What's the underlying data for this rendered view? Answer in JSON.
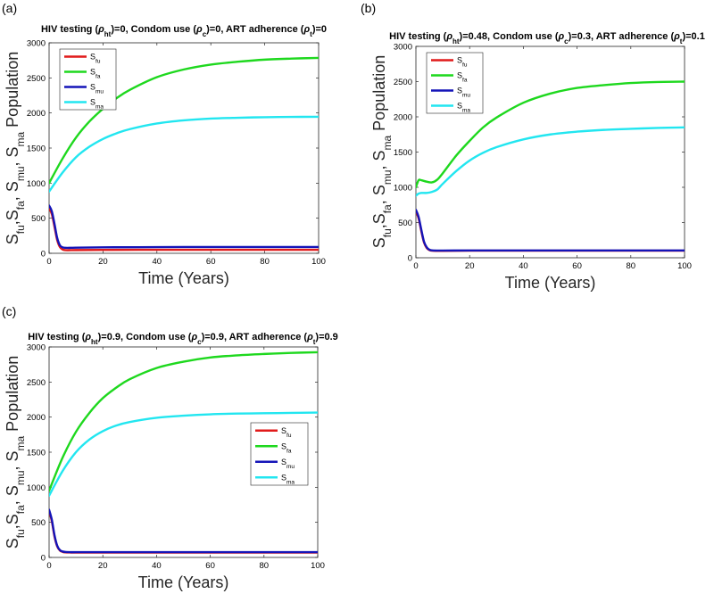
{
  "chart_data": [
    {
      "type": "line",
      "panel_label": "(a)",
      "title_parts": [
        "HIV testing (",
        "ρ",
        "ht",
        ")=0, Condom use (",
        "ρ",
        "c",
        ")=0, ART adherence (",
        "ρ",
        "t",
        ")=0"
      ],
      "xlabel": "Time (Years)",
      "ylabel_parts": [
        "S",
        "fu",
        ",S",
        "fa",
        ", S",
        "mu",
        ", S",
        "ma",
        " Population"
      ],
      "xlim": [
        0,
        100
      ],
      "ylim": [
        0,
        3000
      ],
      "xticks": [
        0,
        20,
        40,
        60,
        80,
        100
      ],
      "yticks": [
        0,
        500,
        1000,
        1500,
        2000,
        2500,
        3000
      ],
      "legend_position": "top-left",
      "series": [
        {
          "name": "S_fu",
          "label_main": "S",
          "label_sub": "fu",
          "color": "#e11a1a",
          "x": [
            0,
            1,
            2,
            3,
            4,
            5,
            6,
            8,
            10,
            20,
            40,
            60,
            80,
            100
          ],
          "y": [
            640,
            560,
            380,
            190,
            90,
            55,
            45,
            45,
            46,
            48,
            50,
            50,
            50,
            50
          ]
        },
        {
          "name": "S_fa",
          "label_main": "S",
          "label_sub": "fa",
          "color": "#1ed81e",
          "x": [
            0,
            5,
            10,
            15,
            20,
            25,
            30,
            40,
            50,
            60,
            70,
            80,
            90,
            100
          ],
          "y": [
            1000,
            1350,
            1650,
            1880,
            2060,
            2210,
            2330,
            2510,
            2620,
            2690,
            2730,
            2760,
            2775,
            2785
          ]
        },
        {
          "name": "S_mu",
          "label_main": "S",
          "label_sub": "mu",
          "color": "#1414b8",
          "x": [
            0,
            1,
            2,
            3,
            4,
            5,
            6,
            8,
            10,
            20,
            40,
            60,
            80,
            100
          ],
          "y": [
            680,
            600,
            420,
            220,
            115,
            85,
            78,
            78,
            80,
            85,
            88,
            90,
            90,
            90
          ]
        },
        {
          "name": "S_ma",
          "label_main": "S",
          "label_sub": "ma",
          "color": "#22e6f0",
          "x": [
            0,
            5,
            10,
            15,
            20,
            25,
            30,
            40,
            50,
            60,
            70,
            80,
            90,
            100
          ],
          "y": [
            880,
            1150,
            1370,
            1520,
            1630,
            1710,
            1770,
            1850,
            1895,
            1920,
            1932,
            1940,
            1944,
            1946
          ]
        }
      ]
    },
    {
      "type": "line",
      "panel_label": "(b)",
      "title_parts": [
        "HIV testing (",
        "ρ",
        "ht",
        ")=0.48, Condom use (",
        "ρ",
        "c",
        ")=0.3, ART adherence (",
        "ρ",
        "t",
        ")=0.1"
      ],
      "xlabel": "Time (Years)",
      "ylabel_parts": [
        "S",
        "fu",
        ",S",
        "fa",
        ", S",
        "mu",
        ", S",
        "ma",
        " Population"
      ],
      "xlim": [
        0,
        100
      ],
      "ylim": [
        0,
        3000
      ],
      "xticks": [
        0,
        20,
        40,
        60,
        80,
        100
      ],
      "yticks": [
        0,
        500,
        1000,
        1500,
        2000,
        2500,
        3000
      ],
      "legend_position": "top-left",
      "series": [
        {
          "name": "S_fu",
          "label_main": "S",
          "label_sub": "fu",
          "color": "#e11a1a",
          "x": [
            0,
            1,
            2,
            3,
            4,
            5,
            6,
            8,
            10,
            20,
            40,
            60,
            80,
            100
          ],
          "y": [
            660,
            560,
            380,
            220,
            140,
            110,
            100,
            98,
            98,
            100,
            100,
            100,
            100,
            100
          ]
        },
        {
          "name": "S_fa",
          "label_main": "S",
          "label_sub": "fa",
          "color": "#1ed81e",
          "x": [
            0,
            1,
            2,
            4,
            6,
            8,
            10,
            15,
            20,
            25,
            30,
            40,
            50,
            60,
            70,
            80,
            90,
            100
          ],
          "y": [
            1000,
            1100,
            1100,
            1080,
            1070,
            1110,
            1200,
            1450,
            1660,
            1850,
            1990,
            2200,
            2330,
            2410,
            2450,
            2480,
            2495,
            2500
          ]
        },
        {
          "name": "S_mu",
          "label_main": "S",
          "label_sub": "mu",
          "color": "#1414b8",
          "x": [
            0,
            1,
            2,
            3,
            4,
            5,
            6,
            8,
            10,
            20,
            40,
            60,
            80,
            100
          ],
          "y": [
            680,
            580,
            400,
            230,
            150,
            115,
            105,
            102,
            102,
            104,
            104,
            104,
            104,
            104
          ]
        },
        {
          "name": "S_ma",
          "label_main": "S",
          "label_sub": "ma",
          "color": "#22e6f0",
          "x": [
            0,
            1,
            2,
            4,
            6,
            8,
            10,
            15,
            20,
            25,
            30,
            40,
            50,
            60,
            70,
            80,
            90,
            100
          ],
          "y": [
            880,
            910,
            920,
            920,
            935,
            970,
            1050,
            1230,
            1380,
            1490,
            1570,
            1680,
            1750,
            1790,
            1815,
            1830,
            1842,
            1850
          ]
        }
      ]
    },
    {
      "type": "line",
      "panel_label": "(c)",
      "title_parts": [
        "HIV testing (",
        "ρ",
        "ht",
        ")=0.9, Condom use (",
        "ρ",
        "c",
        ")=0.9, ART adherence (",
        "ρ",
        "t",
        ")=0.9"
      ],
      "xlabel": "Time (Years)",
      "ylabel_parts": [
        "S",
        "fu",
        ",S",
        "fa",
        ", S",
        "mu",
        ", S",
        "ma",
        " Population"
      ],
      "xlim": [
        0,
        100
      ],
      "ylim": [
        0,
        3000
      ],
      "xticks": [
        0,
        20,
        40,
        60,
        80,
        100
      ],
      "yticks": [
        0,
        500,
        1000,
        1500,
        2000,
        2500,
        3000
      ],
      "legend_position": "right",
      "series": [
        {
          "name": "S_fu",
          "label_main": "S",
          "label_sub": "fu",
          "color": "#e11a1a",
          "x": [
            0,
            1,
            2,
            3,
            4,
            5,
            6,
            8,
            10,
            20,
            40,
            60,
            80,
            100
          ],
          "y": [
            660,
            520,
            300,
            160,
            100,
            80,
            72,
            70,
            70,
            70,
            70,
            70,
            70,
            70
          ]
        },
        {
          "name": "S_fa",
          "label_main": "S",
          "label_sub": "fa",
          "color": "#1ed81e",
          "x": [
            0,
            5,
            10,
            15,
            20,
            25,
            30,
            40,
            50,
            60,
            70,
            80,
            90,
            100
          ],
          "y": [
            950,
            1420,
            1790,
            2060,
            2270,
            2420,
            2540,
            2700,
            2790,
            2850,
            2880,
            2900,
            2915,
            2925
          ]
        },
        {
          "name": "S_mu",
          "label_main": "S",
          "label_sub": "mu",
          "color": "#1414b8",
          "x": [
            0,
            1,
            2,
            3,
            4,
            5,
            6,
            8,
            10,
            20,
            40,
            60,
            80,
            100
          ],
          "y": [
            680,
            540,
            320,
            170,
            105,
            85,
            78,
            75,
            75,
            75,
            75,
            75,
            75,
            75
          ]
        },
        {
          "name": "S_ma",
          "label_main": "S",
          "label_sub": "ma",
          "color": "#22e6f0",
          "x": [
            0,
            5,
            10,
            15,
            20,
            25,
            30,
            40,
            50,
            60,
            70,
            80,
            90,
            100
          ],
          "y": [
            880,
            1230,
            1500,
            1680,
            1800,
            1880,
            1930,
            1990,
            2020,
            2040,
            2050,
            2055,
            2060,
            2065
          ]
        }
      ]
    }
  ]
}
